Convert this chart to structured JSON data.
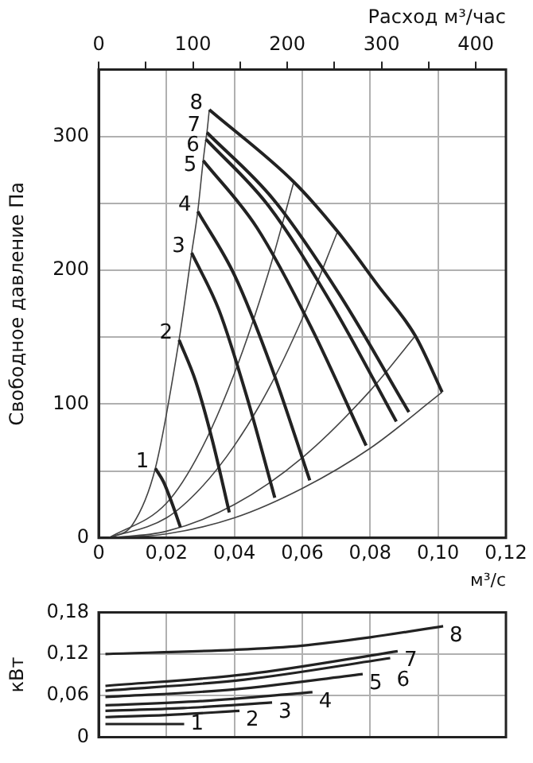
{
  "chart_data": [
    {
      "type": "line",
      "ylabel": "Свободное давление Па",
      "xlabel": "м³/с",
      "x2label": "Расход м³/час",
      "marker": "none",
      "grid": true,
      "legend": false,
      "xlim": [
        0,
        0.12
      ],
      "xticks": [
        0,
        {
          "value": 0.02,
          "label": "0,02"
        },
        {
          "value": 0.04,
          "label": "0,04"
        },
        {
          "value": 0.06,
          "label": "0,06"
        },
        {
          "value": 0.08,
          "label": "0,08"
        },
        {
          "value": 0.1,
          "label": "0,10"
        },
        {
          "value": 0.12,
          "label": "0,12"
        }
      ],
      "x2lim": [
        0,
        432
      ],
      "x2ticks": [
        0,
        {
          "value": 50,
          "label": null
        },
        100,
        {
          "value": 150,
          "label": null
        },
        200,
        {
          "value": 250,
          "label": null
        },
        300,
        {
          "value": 350,
          "label": null
        },
        400
      ],
      "ylim": [
        0,
        350
      ],
      "yticks": [
        0,
        {
          "value": 50,
          "label": null
        },
        100,
        {
          "value": 150,
          "label": null
        },
        200,
        {
          "value": 250,
          "label": null
        },
        300
      ],
      "series": [
        {
          "name": "1",
          "type": "line",
          "color": "#222222",
          "x": [
            0.0167,
            0.0191,
            0.0216,
            0.0241
          ],
          "values": [
            52,
            42,
            26,
            8
          ]
        },
        {
          "name": "2",
          "type": "line",
          "color": "#222222",
          "x": [
            0.0237,
            0.0286,
            0.0335,
            0.0385
          ],
          "values": [
            148,
            117,
            73,
            19
          ]
        },
        {
          "name": "3",
          "type": "line",
          "color": "#222222",
          "x": [
            0.0274,
            0.0355,
            0.0436,
            0.0519
          ],
          "values": [
            213,
            170,
            106,
            30
          ]
        },
        {
          "name": "4",
          "type": "line",
          "color": "#222222",
          "x": [
            0.0292,
            0.0401,
            0.051,
            0.0622
          ],
          "values": [
            244,
            196,
            127,
            43
          ]
        },
        {
          "name": "5",
          "type": "line",
          "color": "#222222",
          "x": [
            0.0308,
            0.0466,
            0.0625,
            0.0788
          ],
          "values": [
            282,
            232,
            158,
            69
          ]
        },
        {
          "name": "6",
          "type": "line",
          "color": "#222222",
          "x": [
            0.0316,
            0.0501,
            0.0686,
            0.0877
          ],
          "values": [
            298,
            248,
            175,
            87
          ]
        },
        {
          "name": "7",
          "type": "line",
          "color": "#222222",
          "x": [
            0.0319,
            0.0515,
            0.0712,
            0.0914
          ],
          "values": [
            303,
            253,
            181,
            94
          ]
        },
        {
          "name": "8",
          "type": "line",
          "color": "#222222",
          "x": [
            0.0326,
            0.0575,
            0.0704,
            0.0822,
            0.0933,
            0.1012
          ],
          "values": [
            320,
            266,
            229,
            189,
            151,
            109
          ]
        },
        {
          "type": "line",
          "color": "#444444",
          "x": [
            0.003,
            0.01,
            0.0167,
            0.0237,
            0.0274,
            0.0292,
            0.0308,
            0.0316,
            0.0319,
            0.0326
          ],
          "values": [
            0,
            10,
            52,
            148,
            213,
            244,
            282,
            298,
            303,
            320
          ]
        },
        {
          "type": "line",
          "color": "#444444",
          "x": [
            0.003,
            0.02,
            0.03,
            0.04,
            0.05,
            0.0575
          ],
          "values": [
            0,
            26,
            65,
            123,
            198,
            266
          ]
        },
        {
          "type": "line",
          "color": "#444444",
          "x": [
            0.003,
            0.02,
            0.03,
            0.04,
            0.05,
            0.06,
            0.0704
          ],
          "values": [
            0,
            15,
            37,
            69,
            111,
            164,
            229
          ]
        },
        {
          "type": "line",
          "color": "#444444",
          "x": [
            0.003,
            0.02,
            0.04,
            0.06,
            0.08,
            0.0933
          ],
          "values": [
            0,
            5,
            25,
            60,
            110,
            151
          ]
        },
        {
          "type": "line",
          "color": "#444444",
          "x": [
            0.003,
            0.02,
            0.04,
            0.06,
            0.08,
            0.1012
          ],
          "values": [
            0,
            3,
            15,
            37,
            67,
            109
          ]
        }
      ]
    },
    {
      "type": "line",
      "ylabel": "кВт",
      "marker": "none",
      "grid": true,
      "legend": false,
      "tick_labels": "y",
      "xlim": [
        0,
        0.12
      ],
      "xticks": [
        0,
        0.02,
        0.04,
        0.06,
        0.08,
        0.1,
        0.12
      ],
      "ylim": [
        0,
        0.18
      ],
      "yticks": [
        0,
        {
          "value": 0.06,
          "label": "0,06"
        },
        {
          "value": 0.12,
          "label": "0,12"
        },
        {
          "value": 0.18,
          "label": "0,18"
        }
      ],
      "series": [
        {
          "name": "1",
          "type": "line",
          "color": "#222222",
          "x": [
            0.002,
            0.0252
          ],
          "values": [
            0.019,
            0.019
          ]
        },
        {
          "name": "2",
          "type": "line",
          "color": "#222222",
          "x": [
            0.002,
            0.02,
            0.0415
          ],
          "values": [
            0.029,
            0.032,
            0.038
          ]
        },
        {
          "name": "3",
          "type": "line",
          "color": "#222222",
          "x": [
            0.002,
            0.025,
            0.0511
          ],
          "values": [
            0.038,
            0.042,
            0.05
          ]
        },
        {
          "name": "4",
          "type": "line",
          "color": "#222222",
          "x": [
            0.002,
            0.03,
            0.063
          ],
          "values": [
            0.046,
            0.052,
            0.065
          ]
        },
        {
          "name": "5",
          "type": "line",
          "color": "#222222",
          "x": [
            0.002,
            0.04,
            0.0778
          ],
          "values": [
            0.058,
            0.069,
            0.091
          ]
        },
        {
          "name": "6",
          "type": "line",
          "color": "#222222",
          "x": [
            0.002,
            0.043,
            0.0859
          ],
          "values": [
            0.067,
            0.083,
            0.114
          ]
        },
        {
          "name": "7",
          "type": "line",
          "color": "#222222",
          "x": [
            0.002,
            0.044,
            0.0881
          ],
          "values": [
            0.074,
            0.091,
            0.124
          ]
        },
        {
          "name": "8",
          "type": "line",
          "color": "#222222",
          "x": [
            0.002,
            0.04,
            0.06,
            0.08,
            0.1015
          ],
          "values": [
            0.12,
            0.126,
            0.132,
            0.144,
            0.16
          ]
        }
      ]
    }
  ]
}
